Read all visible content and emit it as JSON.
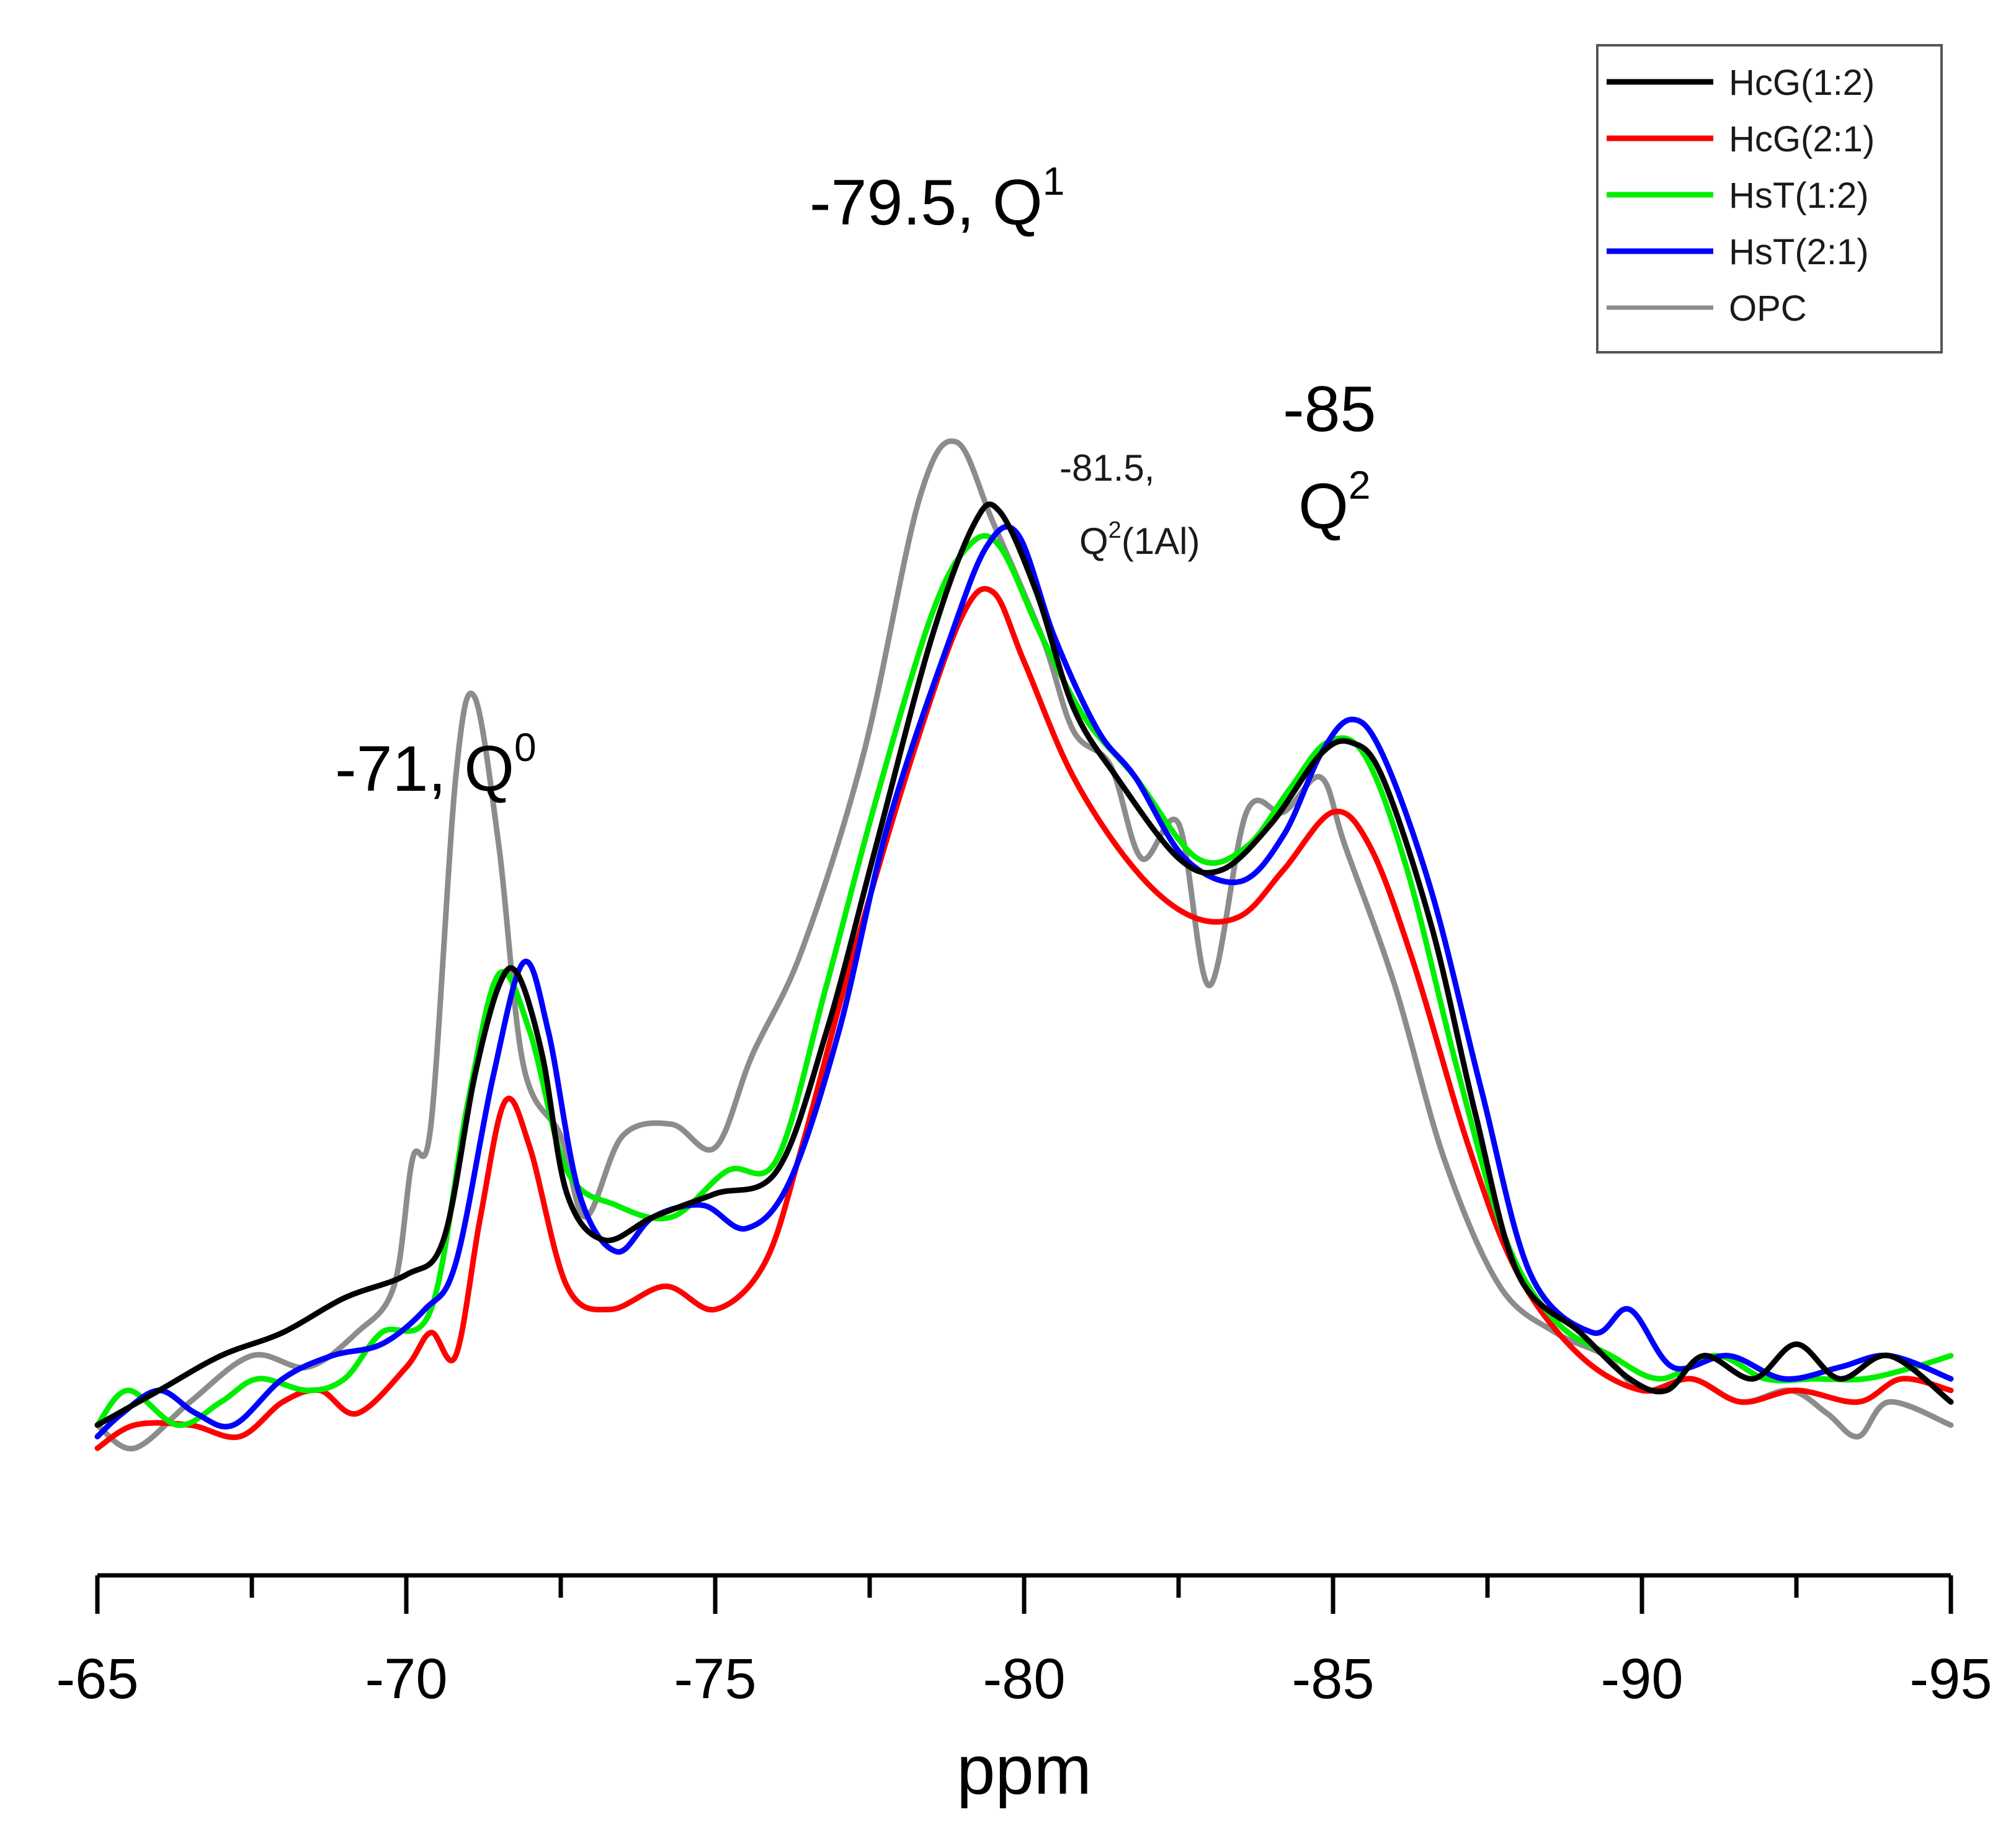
{
  "chart_data": {
    "type": "line",
    "xlabel": "ppm",
    "ylabel": "",
    "xlim": [
      -65,
      -95
    ],
    "ylim": [
      0,
      100
    ],
    "x_ticks": [
      {
        "value": -65,
        "label": "-65"
      },
      {
        "value": -70,
        "label": "-70"
      },
      {
        "value": -75,
        "label": "-75"
      },
      {
        "value": -80,
        "label": "-80"
      },
      {
        "value": -85,
        "label": "-85"
      },
      {
        "value": -90,
        "label": "-90"
      },
      {
        "value": -95,
        "label": "-95"
      }
    ],
    "legend_position": "top-right",
    "series": [
      {
        "name": "HcG(1:2)",
        "color": "#000000",
        "points": [
          [
            -65,
            2
          ],
          [
            -66,
            5
          ],
          [
            -67,
            8
          ],
          [
            -68,
            10
          ],
          [
            -69,
            13
          ],
          [
            -70,
            15
          ],
          [
            -70.6,
            18
          ],
          [
            -71.1,
            32
          ],
          [
            -71.5,
            40
          ],
          [
            -71.8,
            41
          ],
          [
            -72.2,
            34
          ],
          [
            -72.6,
            22
          ],
          [
            -73.2,
            18
          ],
          [
            -74,
            20
          ],
          [
            -75,
            22
          ],
          [
            -76,
            24
          ],
          [
            -76.8,
            36
          ],
          [
            -77.6,
            52
          ],
          [
            -78.5,
            70
          ],
          [
            -79.2,
            80
          ],
          [
            -79.6,
            81
          ],
          [
            -80.2,
            74
          ],
          [
            -80.8,
            64
          ],
          [
            -81.5,
            58
          ],
          [
            -82.5,
            51
          ],
          [
            -83.2,
            50
          ],
          [
            -84,
            54
          ],
          [
            -84.8,
            60
          ],
          [
            -85.3,
            61
          ],
          [
            -85.8,
            58
          ],
          [
            -86.6,
            45
          ],
          [
            -87.3,
            29
          ],
          [
            -88,
            15
          ],
          [
            -89,
            10
          ],
          [
            -89.8,
            6
          ],
          [
            -90.4,
            5
          ],
          [
            -91,
            8
          ],
          [
            -91.8,
            6
          ],
          [
            -92.5,
            9
          ],
          [
            -93.2,
            6
          ],
          [
            -94,
            8
          ],
          [
            -95,
            4
          ]
        ]
      },
      {
        "name": "HcG(2:1)",
        "color": "#ff0000",
        "points": [
          [
            -65,
            0
          ],
          [
            -65.6,
            2
          ],
          [
            -66.5,
            2
          ],
          [
            -67.3,
            1
          ],
          [
            -68,
            4
          ],
          [
            -68.6,
            5
          ],
          [
            -69.2,
            3
          ],
          [
            -70,
            7
          ],
          [
            -70.4,
            10
          ],
          [
            -70.8,
            8
          ],
          [
            -71.2,
            20
          ],
          [
            -71.6,
            30
          ],
          [
            -72,
            26
          ],
          [
            -72.6,
            14
          ],
          [
            -73.3,
            12
          ],
          [
            -74.2,
            14
          ],
          [
            -75,
            12
          ],
          [
            -75.8,
            16
          ],
          [
            -76.4,
            26
          ],
          [
            -77.2,
            42
          ],
          [
            -78.2,
            60
          ],
          [
            -79,
            72
          ],
          [
            -79.5,
            74
          ],
          [
            -80,
            68
          ],
          [
            -80.8,
            58
          ],
          [
            -81.8,
            50
          ],
          [
            -82.7,
            46
          ],
          [
            -83.5,
            46
          ],
          [
            -84.2,
            50
          ],
          [
            -85,
            55
          ],
          [
            -85.6,
            52
          ],
          [
            -86.3,
            42
          ],
          [
            -87.2,
            26
          ],
          [
            -88,
            15
          ],
          [
            -89,
            8
          ],
          [
            -90,
            5
          ],
          [
            -90.8,
            6
          ],
          [
            -91.6,
            4
          ],
          [
            -92.5,
            5
          ],
          [
            -93.5,
            4
          ],
          [
            -94.2,
            6
          ],
          [
            -95,
            5
          ]
        ]
      },
      {
        "name": "HsT(1:2)",
        "color": "#00ee00",
        "points": [
          [
            -65,
            2
          ],
          [
            -65.5,
            5
          ],
          [
            -66.3,
            2
          ],
          [
            -67,
            4
          ],
          [
            -67.6,
            6
          ],
          [
            -68.4,
            5
          ],
          [
            -69,
            6
          ],
          [
            -69.6,
            10
          ],
          [
            -70.4,
            12
          ],
          [
            -71,
            30
          ],
          [
            -71.5,
            41
          ],
          [
            -72,
            36
          ],
          [
            -72.6,
            24
          ],
          [
            -73.4,
            21
          ],
          [
            -74.3,
            20
          ],
          [
            -75.2,
            24
          ],
          [
            -76,
            25
          ],
          [
            -76.8,
            40
          ],
          [
            -77.6,
            56
          ],
          [
            -78.5,
            72
          ],
          [
            -79.1,
            78
          ],
          [
            -79.6,
            78
          ],
          [
            -80.3,
            70
          ],
          [
            -81,
            63
          ],
          [
            -81.8,
            58
          ],
          [
            -82.8,
            51
          ],
          [
            -83.6,
            52
          ],
          [
            -84.3,
            57
          ],
          [
            -84.9,
            61
          ],
          [
            -85.5,
            60
          ],
          [
            -86.2,
            50
          ],
          [
            -87,
            33
          ],
          [
            -87.8,
            18
          ],
          [
            -88.6,
            11
          ],
          [
            -89.5,
            8
          ],
          [
            -90.3,
            6
          ],
          [
            -91.2,
            8
          ],
          [
            -92,
            6
          ],
          [
            -92.8,
            6
          ],
          [
            -93.6,
            6
          ],
          [
            -94.4,
            7
          ],
          [
            -95,
            8
          ]
        ]
      },
      {
        "name": "HsT(2:1)",
        "color": "#0000ff",
        "points": [
          [
            -65,
            1
          ],
          [
            -65.4,
            3
          ],
          [
            -66,
            5
          ],
          [
            -66.6,
            3
          ],
          [
            -67.2,
            2
          ],
          [
            -68,
            6
          ],
          [
            -68.8,
            8
          ],
          [
            -69.6,
            9
          ],
          [
            -70.3,
            12
          ],
          [
            -70.8,
            16
          ],
          [
            -71.4,
            32
          ],
          [
            -71.9,
            42
          ],
          [
            -72.3,
            36
          ],
          [
            -72.8,
            22
          ],
          [
            -73.4,
            17
          ],
          [
            -74,
            20
          ],
          [
            -74.8,
            21
          ],
          [
            -75.5,
            19
          ],
          [
            -76.2,
            23
          ],
          [
            -77,
            36
          ],
          [
            -77.8,
            54
          ],
          [
            -78.8,
            70
          ],
          [
            -79.4,
            78
          ],
          [
            -79.9,
            79
          ],
          [
            -80.5,
            70
          ],
          [
            -81.2,
            62
          ],
          [
            -81.8,
            58
          ],
          [
            -82.6,
            51
          ],
          [
            -83.5,
            49
          ],
          [
            -84.2,
            53
          ],
          [
            -84.8,
            60
          ],
          [
            -85.3,
            63
          ],
          [
            -85.8,
            60
          ],
          [
            -86.6,
            48
          ],
          [
            -87.4,
            31
          ],
          [
            -88.2,
            15
          ],
          [
            -89.2,
            10
          ],
          [
            -89.8,
            12
          ],
          [
            -90.5,
            7
          ],
          [
            -91.4,
            8
          ],
          [
            -92.3,
            6
          ],
          [
            -93.2,
            7
          ],
          [
            -94,
            8
          ],
          [
            -95,
            6
          ]
        ]
      },
      {
        "name": "OPC",
        "color": "#8c8c8c",
        "points": [
          [
            -65,
            2
          ],
          [
            -65.6,
            0
          ],
          [
            -66.5,
            4
          ],
          [
            -67.5,
            8
          ],
          [
            -68.4,
            7
          ],
          [
            -69.2,
            10
          ],
          [
            -69.8,
            14
          ],
          [
            -70.1,
            25
          ],
          [
            -70.4,
            28
          ],
          [
            -70.8,
            58
          ],
          [
            -71.1,
            65
          ],
          [
            -71.5,
            52
          ],
          [
            -71.9,
            33
          ],
          [
            -72.5,
            27
          ],
          [
            -72.9,
            20
          ],
          [
            -73.5,
            27
          ],
          [
            -74.3,
            28
          ],
          [
            -75,
            26
          ],
          [
            -75.6,
            34
          ],
          [
            -76.4,
            43
          ],
          [
            -77.4,
            60
          ],
          [
            -78.3,
            82
          ],
          [
            -78.9,
            87
          ],
          [
            -79.5,
            80
          ],
          [
            -80.3,
            70
          ],
          [
            -80.8,
            62
          ],
          [
            -81.4,
            59
          ],
          [
            -81.9,
            51
          ],
          [
            -82.5,
            54
          ],
          [
            -83,
            40
          ],
          [
            -83.6,
            55
          ],
          [
            -84.2,
            55
          ],
          [
            -84.8,
            58
          ],
          [
            -85.2,
            52
          ],
          [
            -86,
            40
          ],
          [
            -86.8,
            25
          ],
          [
            -87.7,
            14
          ],
          [
            -88.6,
            10
          ],
          [
            -89.4,
            8
          ],
          [
            -90,
            5
          ],
          [
            -90.8,
            6
          ],
          [
            -91.6,
            4
          ],
          [
            -92.4,
            5
          ],
          [
            -93,
            3
          ],
          [
            -93.5,
            1
          ],
          [
            -94,
            4
          ],
          [
            -95,
            2
          ]
        ]
      }
    ],
    "annotations": [
      {
        "main": "-71, Q",
        "sup": "0"
      },
      {
        "main": "-79.5, Q",
        "sup": "1"
      },
      {
        "line1": "-81.5,",
        "line2_main": "Q",
        "line2_sup": "2",
        "line2_rest": "(1Al)"
      },
      {
        "line1": "-85",
        "line2_main": "Q",
        "line2_sup": "2"
      }
    ]
  }
}
